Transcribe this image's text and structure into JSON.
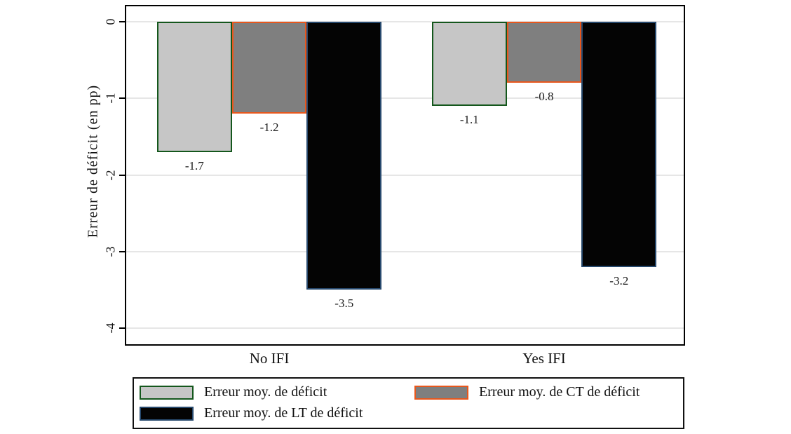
{
  "chart_data": {
    "type": "bar",
    "categories": [
      "No IFI",
      "Yes IFI"
    ],
    "series": [
      {
        "name": "Erreur moy. de déficit",
        "values": [
          -1.7,
          -1.1
        ],
        "labels": [
          "-1.7",
          "-1.1"
        ],
        "fill": "#c6c6c6",
        "border": "#14571c"
      },
      {
        "name": "Erreur moy. de CT de déficit",
        "values": [
          -1.2,
          -0.8
        ],
        "labels": [
          "-1.2",
          "-0.8"
        ],
        "fill": "#7f7f7f",
        "border": "#e8571c"
      },
      {
        "name": "Erreur moy. de LT de déficit",
        "values": [
          -3.5,
          -3.2
        ],
        "labels": [
          "-3.5",
          "-3.2"
        ],
        "fill": "#040404",
        "border": "#27496d"
      }
    ],
    "title": "",
    "xlabel": "",
    "ylabel": "Erreur de déficit (en pp)",
    "yticks": [
      0,
      -1,
      -2,
      -3,
      -4
    ],
    "ylim": [
      -4.21,
      0.2
    ],
    "grid": true,
    "gridline_color": "#e6e6e6",
    "legend_position": "bottom"
  }
}
